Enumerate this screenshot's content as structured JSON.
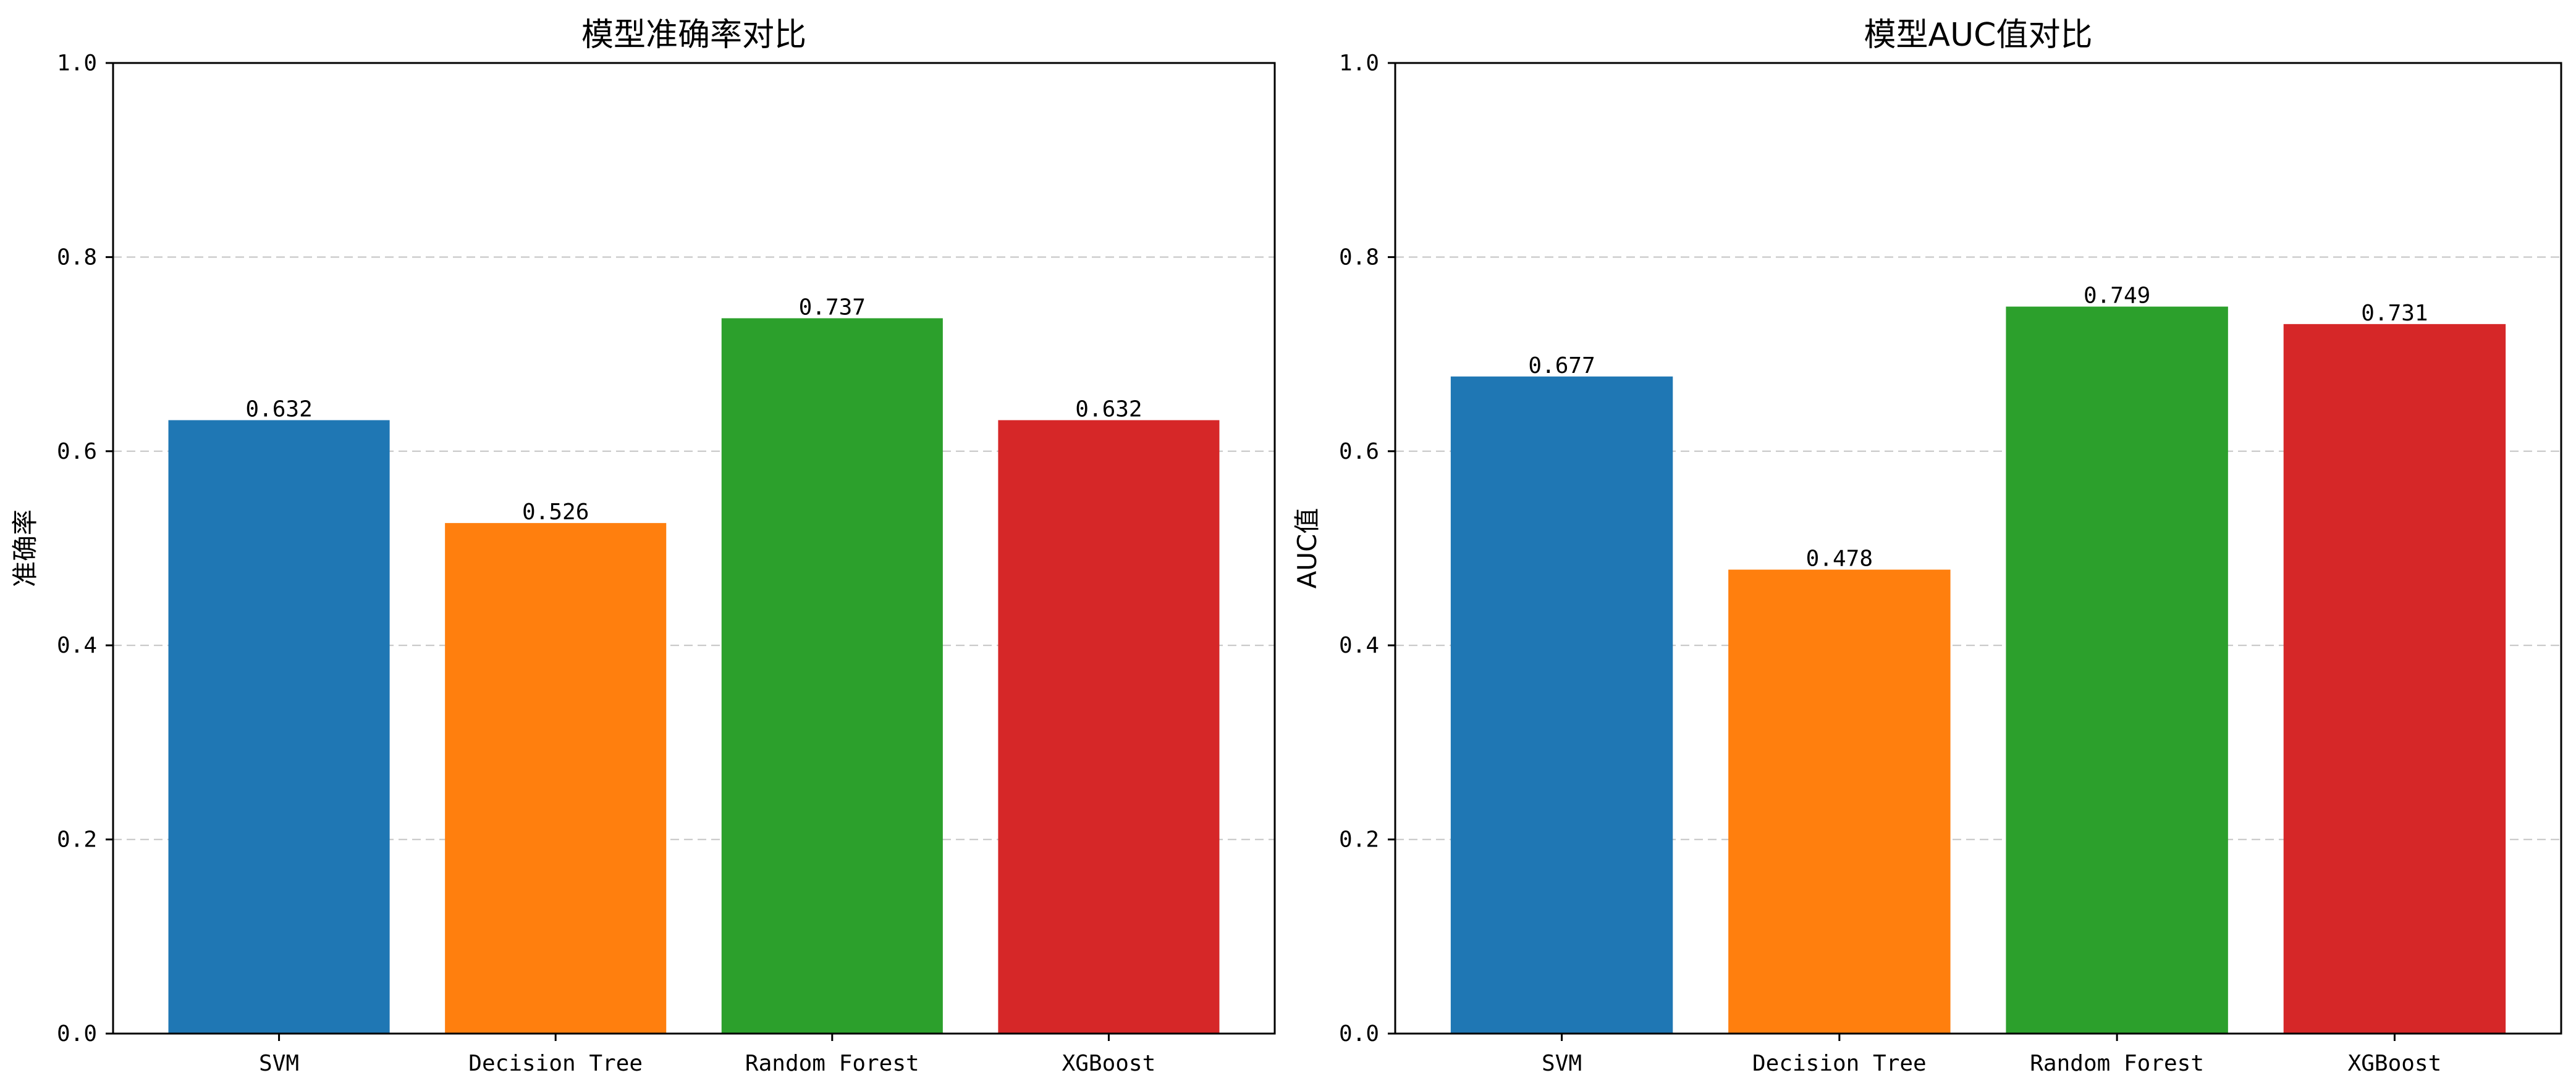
{
  "chart_data": [
    {
      "type": "bar",
      "title": "模型准确率对比",
      "xlabel": "",
      "ylabel": "准确率",
      "categories": [
        "SVM",
        "Decision Tree",
        "Random Forest",
        "XGBoost"
      ],
      "values": [
        0.632,
        0.526,
        0.737,
        0.632
      ],
      "value_labels": [
        "0.632",
        "0.526",
        "0.737",
        "0.632"
      ],
      "colors": [
        "#1f77b4",
        "#ff7f0e",
        "#2ca02c",
        "#d62728"
      ],
      "ylim": [
        0,
        1.0
      ],
      "yticks": [
        0.0,
        0.2,
        0.4,
        0.6,
        0.8,
        1.0
      ],
      "ytick_labels": [
        "0.0",
        "0.2",
        "0.4",
        "0.6",
        "0.8",
        "1.0"
      ],
      "grid": "y-dashed",
      "legend": "none"
    },
    {
      "type": "bar",
      "title": "模型AUC值对比",
      "xlabel": "",
      "ylabel": "AUC值",
      "categories": [
        "SVM",
        "Decision Tree",
        "Random Forest",
        "XGBoost"
      ],
      "values": [
        0.677,
        0.478,
        0.749,
        0.731
      ],
      "value_labels": [
        "0.677",
        "0.478",
        "0.749",
        "0.731"
      ],
      "colors": [
        "#1f77b4",
        "#ff7f0e",
        "#2ca02c",
        "#d62728"
      ],
      "ylim": [
        0,
        1.0
      ],
      "yticks": [
        0.0,
        0.2,
        0.4,
        0.6,
        0.8,
        1.0
      ],
      "ytick_labels": [
        "0.0",
        "0.2",
        "0.4",
        "0.6",
        "0.8",
        "1.0"
      ],
      "grid": "y-dashed",
      "legend": "none"
    }
  ]
}
